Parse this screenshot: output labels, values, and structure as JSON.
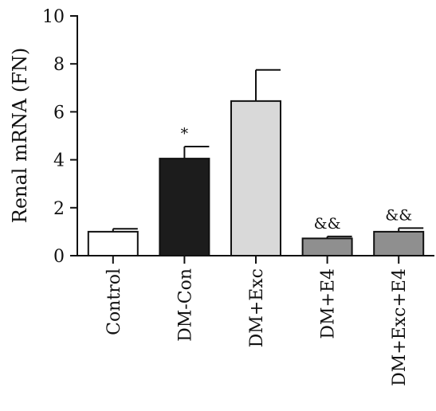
{
  "chart_data": {
    "type": "bar",
    "title": "",
    "xlabel": "",
    "ylabel": "Renal mRNA (FN)",
    "ylim": [
      0,
      10
    ],
    "yticks": [
      0,
      2,
      4,
      6,
      8,
      10
    ],
    "grid": false,
    "categories": [
      "Control",
      "DM-Con",
      "DM+Exc",
      "DM+E4",
      "DM+Exc+E4"
    ],
    "values": [
      1.0,
      4.05,
      6.45,
      0.72,
      1.0
    ],
    "errors": [
      0.12,
      0.5,
      1.3,
      0.08,
      0.15
    ],
    "colors": [
      "#ffffff",
      "#1c1c1c",
      "#d9d9d9",
      "#8f8f8f",
      "#8f8f8f"
    ],
    "annotations": [
      "",
      "*",
      "",
      "&&",
      "&&"
    ]
  }
}
